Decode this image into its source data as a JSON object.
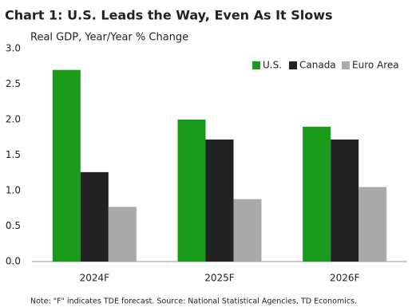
{
  "chart_data": {
    "type": "bar",
    "title": "Chart 1: U.S. Leads the Way, Even As It Slows",
    "subtitle": "Real GDP, Year/Year % Change",
    "note": "Note: \"F\" indicates TDE forecast. Source: National Statistical Agencies, TD Economics.",
    "categories": [
      "2024F",
      "2025F",
      "2026F"
    ],
    "series": [
      {
        "name": "U.S.",
        "color": "#1a9a1a",
        "values": [
          2.7,
          2.0,
          1.9
        ]
      },
      {
        "name": "Canada",
        "color": "#222222",
        "values": [
          1.26,
          1.72,
          1.72
        ]
      },
      {
        "name": "Euro Area",
        "color": "#aaaaaa",
        "values": [
          0.77,
          0.88,
          1.05
        ]
      }
    ],
    "ylim": [
      0,
      3
    ],
    "yticks": [
      {
        "value": 0,
        "label": "0.0"
      },
      0.5,
      {
        "value": 1,
        "label": "1.0"
      },
      1.5,
      {
        "value": 2,
        "label": "2.0"
      },
      2.5,
      {
        "value": 3,
        "label": "3.0"
      }
    ],
    "grid": false,
    "legend": "top-right"
  }
}
